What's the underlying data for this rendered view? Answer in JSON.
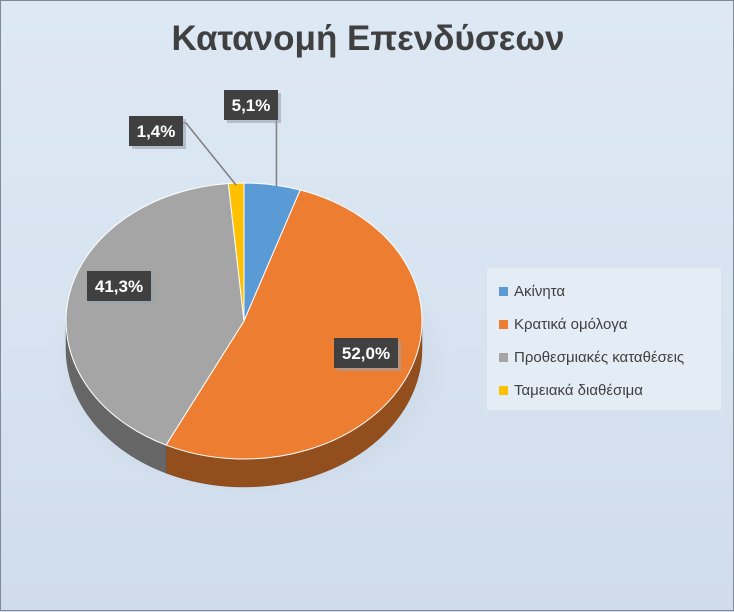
{
  "chart_data": {
    "type": "pie",
    "title": "Κατανομή Επενδύσεων",
    "categories": [
      "Ακίνητα",
      "Κρατικά ομόλογα",
      "Προθεσμιακές καταθέσεις",
      "Ταμειακά διαθέσιμα"
    ],
    "values": [
      5.1,
      52.0,
      41.3,
      1.4
    ],
    "data_labels": [
      "5,1%",
      "52,0%",
      "41,3%",
      "1,4%"
    ],
    "colors": [
      "#5b9bd5",
      "#ed7d31",
      "#a5a5a5",
      "#ffc000"
    ],
    "legend_position": "right",
    "style": "3d-pie"
  }
}
